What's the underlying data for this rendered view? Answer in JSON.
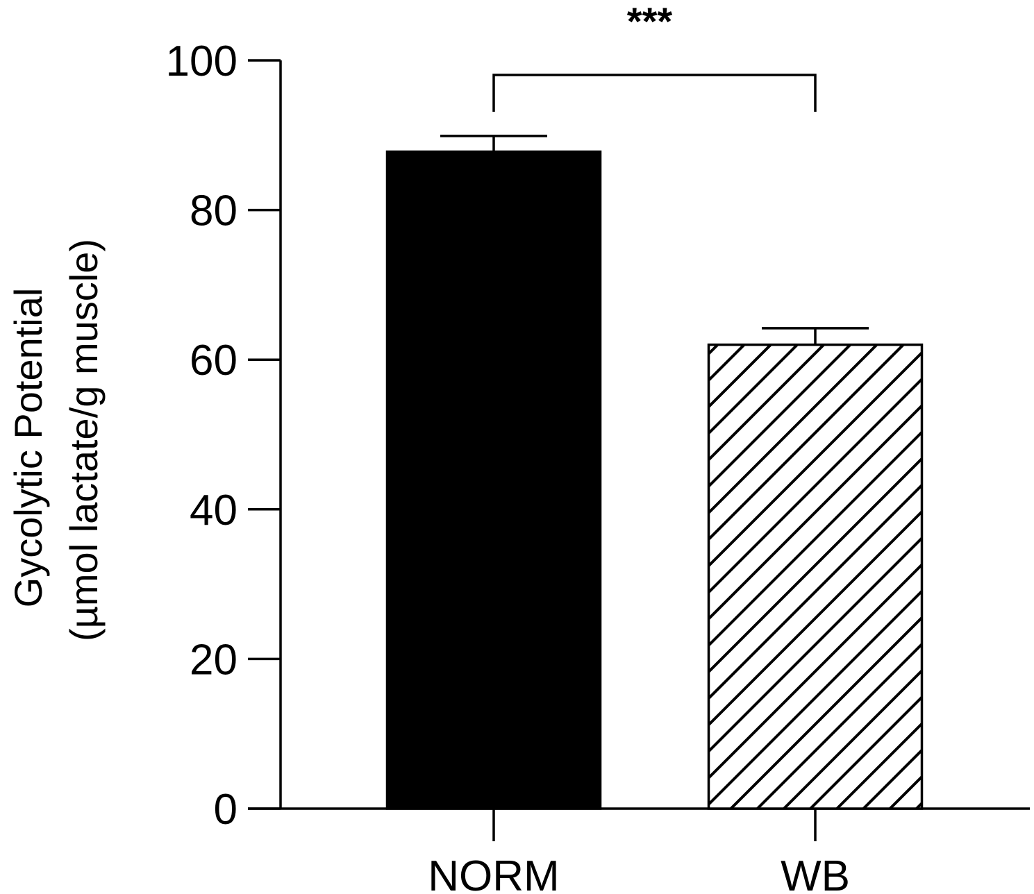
{
  "chart_data": {
    "type": "bar",
    "categories": [
      "NORM",
      "WB"
    ],
    "values": [
      87.8,
      62.0
    ],
    "errors": [
      2.1,
      2.2
    ],
    "bar_styles": [
      "solid",
      "hatched"
    ],
    "ylabel_line1": "Gycolytic Potential",
    "ylabel_line2": "(µmol lactate/g muscle)",
    "ylim": [
      0,
      100
    ],
    "yticks": [
      0,
      20,
      40,
      60,
      80,
      100
    ],
    "ytick_labels": [
      "0",
      "20",
      "40",
      "60",
      "80",
      "100"
    ],
    "significance": {
      "between": [
        "NORM",
        "WB"
      ],
      "label": "***"
    },
    "colors": {
      "bar_fill": "#000000",
      "hatch_fill": "#ffffff",
      "stroke": "#000000"
    }
  }
}
